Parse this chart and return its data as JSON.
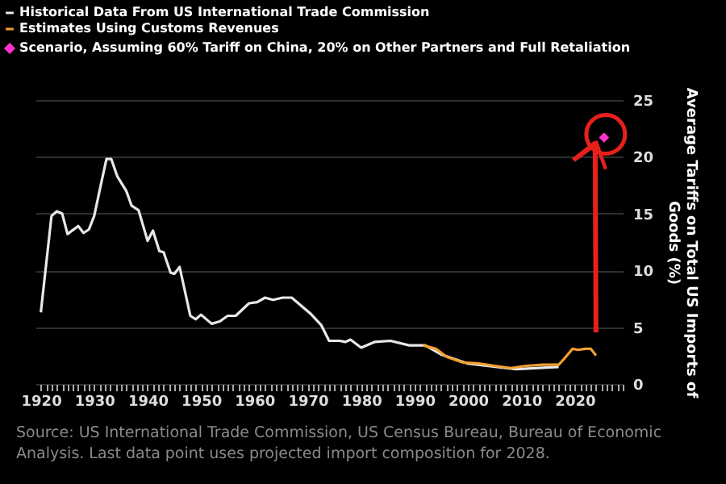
{
  "chart_data": {
    "type": "line",
    "ylabel": "Average Tariffs on Total US Imports of Goods (%)",
    "xlim": [
      1919,
      2029
    ],
    "xticks": [
      1920,
      {
        "value": 1921,
        "label": null
      },
      {
        "value": 1922,
        "label": null
      },
      {
        "value": 1923,
        "label": null
      },
      {
        "value": 1924,
        "label": null
      },
      {
        "value": 1925,
        "label": null
      },
      {
        "value": 1926,
        "label": null
      },
      {
        "value": 1927,
        "label": null
      },
      {
        "value": 1928,
        "label": null
      },
      {
        "value": 1929,
        "label": null
      },
      1930,
      {
        "value": 1931,
        "label": null
      },
      {
        "value": 1932,
        "label": null
      },
      {
        "value": 1933,
        "label": null
      },
      {
        "value": 1934,
        "label": null
      },
      {
        "value": 1935,
        "label": null
      },
      {
        "value": 1936,
        "label": null
      },
      {
        "value": 1937,
        "label": null
      },
      {
        "value": 1938,
        "label": null
      },
      {
        "value": 1939,
        "label": null
      },
      1940,
      {
        "value": 1941,
        "label": null
      },
      {
        "value": 1942,
        "label": null
      },
      {
        "value": 1943,
        "label": null
      },
      {
        "value": 1944,
        "label": null
      },
      {
        "value": 1945,
        "label": null
      },
      {
        "value": 1946,
        "label": null
      },
      {
        "value": 1947,
        "label": null
      },
      {
        "value": 1948,
        "label": null
      },
      {
        "value": 1949,
        "label": null
      },
      1950,
      {
        "value": 1951,
        "label": null
      },
      {
        "value": 1952,
        "label": null
      },
      {
        "value": 1953,
        "label": null
      },
      {
        "value": 1954,
        "label": null
      },
      {
        "value": 1955,
        "label": null
      },
      {
        "value": 1956,
        "label": null
      },
      {
        "value": 1957,
        "label": null
      },
      {
        "value": 1958,
        "label": null
      },
      {
        "value": 1959,
        "label": null
      },
      1960,
      {
        "value": 1961,
        "label": null
      },
      {
        "value": 1962,
        "label": null
      },
      {
        "value": 1963,
        "label": null
      },
      {
        "value": 1964,
        "label": null
      },
      {
        "value": 1965,
        "label": null
      },
      {
        "value": 1966,
        "label": null
      },
      {
        "value": 1967,
        "label": null
      },
      {
        "value": 1968,
        "label": null
      },
      {
        "value": 1969,
        "label": null
      },
      1970,
      {
        "value": 1971,
        "label": null
      },
      {
        "value": 1972,
        "label": null
      },
      {
        "value": 1973,
        "label": null
      },
      {
        "value": 1974,
        "label": null
      },
      {
        "value": 1975,
        "label": null
      },
      {
        "value": 1976,
        "label": null
      },
      {
        "value": 1977,
        "label": null
      },
      {
        "value": 1978,
        "label": null
      },
      {
        "value": 1979,
        "label": null
      },
      1980,
      {
        "value": 1981,
        "label": null
      },
      {
        "value": 1982,
        "label": null
      },
      {
        "value": 1983,
        "label": null
      },
      {
        "value": 1984,
        "label": null
      },
      {
        "value": 1985,
        "label": null
      },
      {
        "value": 1986,
        "label": null
      },
      {
        "value": 1987,
        "label": null
      },
      {
        "value": 1988,
        "label": null
      },
      {
        "value": 1989,
        "label": null
      },
      1990,
      {
        "value": 1991,
        "label": null
      },
      {
        "value": 1992,
        "label": null
      },
      {
        "value": 1993,
        "label": null
      },
      {
        "value": 1994,
        "label": null
      },
      {
        "value": 1995,
        "label": null
      },
      {
        "value": 1996,
        "label": null
      },
      {
        "value": 1997,
        "label": null
      },
      {
        "value": 1998,
        "label": null
      },
      {
        "value": 1999,
        "label": null
      },
      2000,
      {
        "value": 2001,
        "label": null
      },
      {
        "value": 2002,
        "label": null
      },
      {
        "value": 2003,
        "label": null
      },
      {
        "value": 2004,
        "label": null
      },
      {
        "value": 2005,
        "label": null
      },
      {
        "value": 2006,
        "label": null
      },
      {
        "value": 2007,
        "label": null
      },
      {
        "value": 2008,
        "label": null
      },
      {
        "value": 2009,
        "label": null
      },
      2010,
      {
        "value": 2011,
        "label": null
      },
      {
        "value": 2012,
        "label": null
      },
      {
        "value": 2013,
        "label": null
      },
      {
        "value": 2014,
        "label": null
      },
      {
        "value": 2015,
        "label": null
      },
      {
        "value": 2016,
        "label": null
      },
      {
        "value": 2017,
        "label": null
      },
      {
        "value": 2018,
        "label": null
      },
      {
        "value": 2019,
        "label": null
      },
      2020,
      {
        "value": 2021,
        "label": null
      },
      {
        "value": 2022,
        "label": null
      },
      {
        "value": 2023,
        "label": null
      },
      {
        "value": 2024,
        "label": null
      },
      {
        "value": 2025,
        "label": null
      },
      {
        "value": 2026,
        "label": null
      },
      {
        "value": 2027,
        "label": null
      },
      {
        "value": 2028,
        "label": null
      },
      {
        "value": 2029,
        "label": null
      }
    ],
    "ylim": [
      0,
      25
    ],
    "yticks": [
      0,
      5,
      10,
      15,
      20,
      25
    ],
    "grid": "y",
    "legend": "top left",
    "series": [
      {
        "name": "Historical Data From US International Trade Commission",
        "color": "#e8e8e8",
        "x": [
          1920,
          1922,
          1923,
          1924,
          1925,
          1927,
          1928,
          1929,
          1930,
          1931.5,
          1932.3,
          1933.2,
          1934.3,
          1936,
          1937,
          1938.3,
          1940,
          1941,
          1942.2,
          1943,
          1944.3,
          1945,
          1946,
          1948,
          1949,
          1950,
          1952,
          1953.5,
          1955,
          1956.5,
          1959,
          1960.5,
          1962,
          1963.5,
          1965.3,
          1967,
          1968.5,
          1970.5,
          1972.5,
          1974,
          1976,
          1977,
          1978,
          1980,
          1982.5,
          1985.5,
          1989,
          1992,
          1995,
          2000,
          2009,
          2017
        ],
        "values": [
          6.3,
          14.8,
          15.2,
          15.0,
          13.2,
          13.9,
          13.3,
          13.6,
          14.8,
          18.1,
          19.8,
          19.8,
          18.3,
          17.0,
          15.7,
          15.3,
          12.6,
          13.5,
          11.7,
          11.6,
          9.8,
          9.7,
          10.3,
          6.0,
          5.7,
          6.1,
          5.3,
          5.5,
          6.0,
          6.0,
          7.1,
          7.2,
          7.6,
          7.4,
          7.6,
          7.6,
          7.0,
          6.2,
          5.2,
          3.8,
          3.8,
          3.7,
          3.9,
          3.2,
          3.7,
          3.8,
          3.4,
          3.4,
          2.6,
          1.8,
          1.3,
          1.5
        ]
      },
      {
        "name": "Estimates Using Customs Revenues",
        "color": "#f0a030",
        "x": [
          1991.6,
          1994,
          1996,
          1999,
          2002,
          2005,
          2008,
          2011,
          2014,
          2017,
          2018,
          2019.6,
          2020.6,
          2022,
          2023,
          2024
        ],
        "values": [
          3.4,
          3.1,
          2.4,
          1.9,
          1.8,
          1.6,
          1.4,
          1.6,
          1.7,
          1.7,
          2.2,
          3.1,
          3.0,
          3.1,
          3.1,
          2.5
        ]
      },
      {
        "name": "Scenario, Assuming 60% Tariff on China, 20% on Other Partners and Full Retaliation",
        "type": "scatter",
        "marker": "diamond",
        "color": "#ff33cc",
        "x": [
          2025.5
        ],
        "values": [
          21.7
        ]
      }
    ],
    "annotations": [
      "Source: US International Trade Commission, US Census Bureau, Bureau of Economic Analysis. Last data point uses projected import composition for 2028."
    ]
  }
}
